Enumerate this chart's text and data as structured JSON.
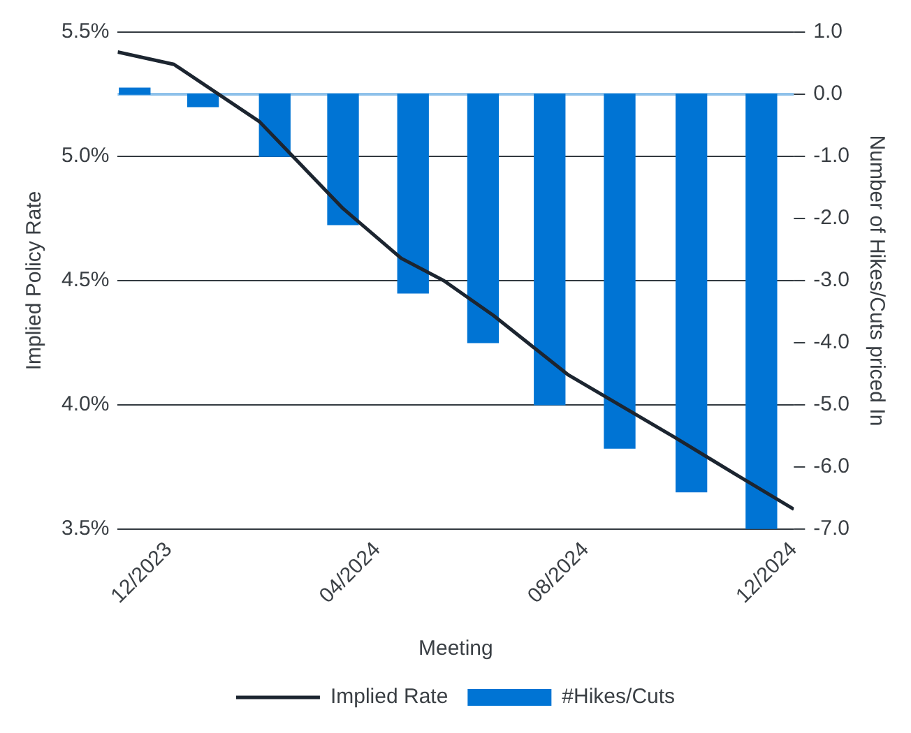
{
  "chart_data": {
    "type": "bar",
    "xlabel": "Meeting",
    "ylabel": "Implied Policy Rate",
    "y2label": "Number of Hikes/Cuts priced In",
    "xlim": [
      "2023-11-01",
      "2024-12-01"
    ],
    "xticks": [
      {
        "value": "2023-12-01",
        "label": "12/2023"
      },
      {
        "value": "2024-04-01",
        "label": "04/2024"
      },
      {
        "value": "2024-08-01",
        "label": "08/2024"
      },
      {
        "value": "2024-12-01",
        "label": "12/2024"
      }
    ],
    "ylim": [
      3.5,
      5.5
    ],
    "yticks": [
      {
        "value": 3.5,
        "label": "3.5%"
      },
      {
        "value": 4.0,
        "label": "4.0%"
      },
      {
        "value": 4.5,
        "label": "4.5%"
      },
      {
        "value": 5.0,
        "label": "5.0%"
      },
      {
        "value": 5.5,
        "label": "5.5%"
      }
    ],
    "y2lim": [
      -7,
      1
    ],
    "y2ticks": [
      {
        "value": -7,
        "label": "-7.0"
      },
      {
        "value": -6,
        "label": "-6.0"
      },
      {
        "value": -5,
        "label": "-5.0"
      },
      {
        "value": -4,
        "label": "-4.0"
      },
      {
        "value": -3,
        "label": "-3.0"
      },
      {
        "value": -2,
        "label": "-2.0"
      },
      {
        "value": -1,
        "label": "-1.0"
      },
      {
        "value": 0,
        "label": "0.0"
      },
      {
        "value": 1,
        "label": "1.0"
      }
    ],
    "grid": "y",
    "legend": "bottom",
    "ref_lines": [
      {
        "axis": "y2",
        "value": 0,
        "color": "#8ec1ea"
      }
    ],
    "series": [
      {
        "name": "#Hikes/Cuts",
        "axis": "y2",
        "color": "#0074d4",
        "x": [
          "2023-11-11",
          "2023-12-21",
          "2024-02-01",
          "2024-03-12",
          "2024-04-22",
          "2024-06-02",
          "2024-07-11",
          "2024-08-21",
          "2024-10-02",
          "2024-11-12"
        ],
        "values": [
          0.1,
          -0.2,
          -1.0,
          -2.1,
          -3.2,
          -4.0,
          -5.0,
          -5.7,
          -6.4,
          -7.0
        ]
      },
      {
        "name": "Implied Rate",
        "type": "line",
        "axis": "y",
        "color": "#1c2530",
        "marker": "none",
        "line_style": "solid",
        "x": [
          "2023-11-01",
          "2023-12-04",
          "2024-01-23",
          "2024-02-13",
          "2024-03-12",
          "2024-04-15",
          "2024-05-10",
          "2024-06-08",
          "2024-07-22",
          "2024-09-22",
          "2024-10-28",
          "2024-12-01"
        ],
        "values": [
          5.42,
          5.37,
          5.14,
          4.99,
          4.79,
          4.59,
          4.5,
          4.36,
          4.12,
          3.87,
          3.72,
          3.58
        ]
      }
    ]
  }
}
